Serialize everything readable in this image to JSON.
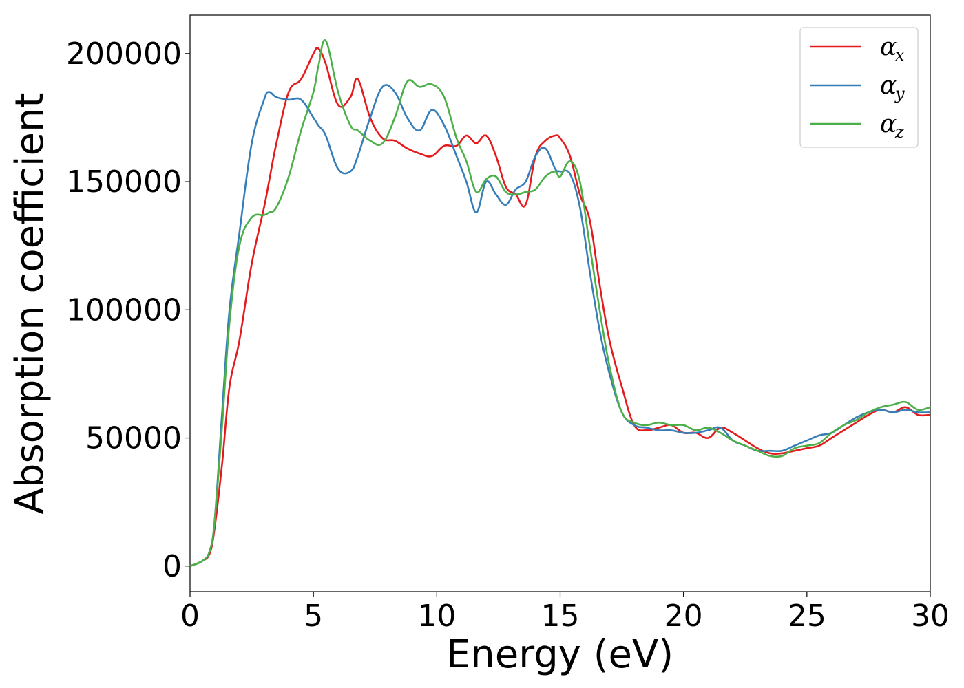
{
  "chart_data": {
    "type": "line",
    "xlabel": "Energy (eV)",
    "ylabel": "Absorption coefficient",
    "xlim": [
      0,
      30
    ],
    "ylim": [
      -10000,
      215000
    ],
    "x_ticks": [
      "0",
      "5",
      "10",
      "15",
      "20",
      "25",
      "30"
    ],
    "y_ticks": [
      "0",
      "50000",
      "100000",
      "150000",
      "200000"
    ],
    "grid": false,
    "legend_position": "top-right",
    "x": [
      0,
      0.5,
      0.8,
      1.0,
      1.3,
      1.6,
      2.0,
      2.5,
      3.0,
      3.2,
      3.5,
      4.0,
      4.5,
      5.0,
      5.2,
      5.5,
      6.0,
      6.5,
      6.8,
      7.3,
      7.8,
      8.3,
      8.8,
      9.3,
      9.8,
      10.3,
      10.8,
      11.2,
      11.6,
      12.0,
      12.4,
      12.8,
      13.2,
      13.6,
      14.0,
      14.4,
      14.8,
      15.0,
      15.4,
      15.8,
      16.2,
      16.6,
      17.0,
      17.5,
      18.0,
      18.5,
      19.0,
      19.5,
      20.0,
      20.5,
      21.0,
      21.5,
      22.0,
      22.5,
      23.0,
      23.5,
      24.0,
      24.5,
      25.0,
      25.5,
      26.0,
      26.5,
      27.0,
      27.5,
      28.0,
      28.5,
      29.0,
      29.5,
      30.0
    ],
    "series": [
      {
        "name": "x",
        "color": "#e41a1c",
        "values": [
          0,
          2000,
          5000,
          15000,
          40000,
          70000,
          88000,
          118000,
          140000,
          150000,
          165000,
          185000,
          190000,
          200000,
          202000,
          196000,
          180000,
          183000,
          190000,
          175000,
          167000,
          166000,
          163000,
          161000,
          160000,
          164000,
          164000,
          168000,
          165000,
          168000,
          160000,
          148000,
          145000,
          141000,
          160000,
          166000,
          168000,
          167000,
          160000,
          145000,
          135000,
          110000,
          88000,
          70000,
          55000,
          53000,
          54000,
          55000,
          52000,
          52000,
          50000,
          54000,
          52000,
          49000,
          46000,
          44000,
          44000,
          45000,
          46000,
          47000,
          50000,
          53000,
          56000,
          59000,
          61000,
          60000,
          62000,
          59000,
          59000
        ]
      },
      {
        "name": "y",
        "color": "#377eb8",
        "values": [
          0,
          2000,
          6000,
          18000,
          60000,
          100000,
          130000,
          165000,
          182000,
          185000,
          183000,
          182000,
          182000,
          175000,
          172000,
          168000,
          155000,
          154000,
          160000,
          175000,
          187000,
          185000,
          175000,
          170000,
          178000,
          172000,
          160000,
          150000,
          138000,
          150000,
          145000,
          141000,
          147000,
          150000,
          160000,
          163000,
          155000,
          154000,
          153000,
          140000,
          115000,
          92000,
          75000,
          60000,
          55000,
          54000,
          53000,
          53000,
          52000,
          52000,
          53000,
          54000,
          49000,
          47000,
          45000,
          45000,
          45000,
          47000,
          49000,
          51000,
          52000,
          55000,
          58000,
          60000,
          61000,
          60000,
          61000,
          60000,
          60000
        ]
      },
      {
        "name": "z",
        "color": "#4daf4a",
        "values": [
          0,
          2000,
          6000,
          18000,
          55000,
          95000,
          125000,
          136000,
          137000,
          138000,
          140000,
          152000,
          170000,
          185000,
          195000,
          205000,
          185000,
          172000,
          170000,
          166000,
          165000,
          175000,
          189000,
          187000,
          188000,
          183000,
          167000,
          158000,
          146000,
          151000,
          152000,
          146000,
          145000,
          146000,
          147000,
          152000,
          154000,
          152000,
          158000,
          150000,
          125000,
          100000,
          78000,
          60000,
          56000,
          55000,
          56000,
          55000,
          55000,
          53000,
          54000,
          52000,
          49000,
          47000,
          45000,
          43000,
          43000,
          46000,
          47000,
          48000,
          52000,
          55000,
          57000,
          60000,
          62000,
          63000,
          64000,
          61000,
          62000
        ]
      }
    ]
  }
}
